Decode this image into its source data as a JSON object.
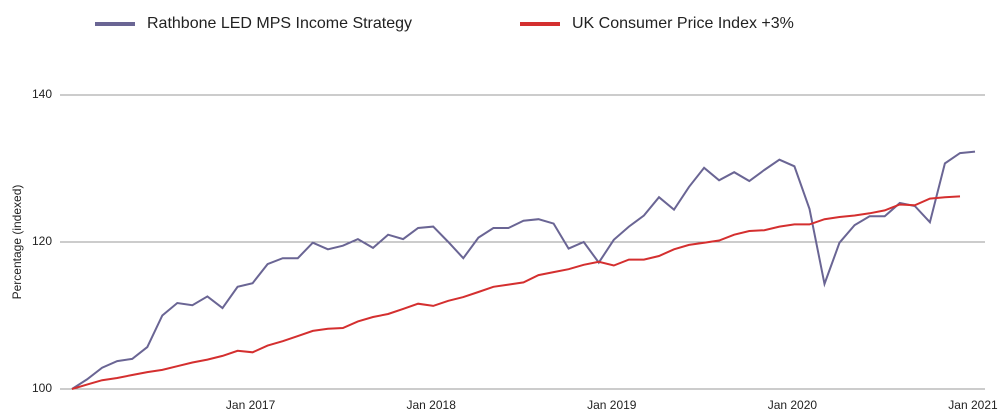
{
  "chart_data": {
    "type": "line",
    "categories": [
      null,
      null,
      null,
      null,
      null,
      null,
      null,
      null,
      null,
      null,
      null,
      null,
      "Jan 2017",
      null,
      null,
      null,
      null,
      null,
      null,
      null,
      null,
      null,
      null,
      null,
      "Jan 2018",
      null,
      null,
      null,
      null,
      null,
      null,
      null,
      null,
      null,
      null,
      null,
      "Jan 2019",
      null,
      null,
      null,
      null,
      null,
      null,
      null,
      null,
      null,
      null,
      null,
      "Jan 2020",
      null,
      null,
      null,
      null,
      null,
      null,
      null,
      null,
      null,
      null,
      null,
      "Jan 2021"
    ],
    "series": [
      {
        "name": "Rathbone LED MPS Income Strategy",
        "color": "#6a6594",
        "values": [
          100,
          101.3,
          102.9,
          103.8,
          104.1,
          105.7,
          110.0,
          111.7,
          111.4,
          112.6,
          111.0,
          113.9,
          114.4,
          117.0,
          117.8,
          117.8,
          119.9,
          119.0,
          119.5,
          120.4,
          119.2,
          121.0,
          120.4,
          121.9,
          122.1,
          120.0,
          117.8,
          120.6,
          121.9,
          121.9,
          122.9,
          123.1,
          122.5,
          119.1,
          120.0,
          117.2,
          120.3,
          122.1,
          123.6,
          126.1,
          124.4,
          127.5,
          130.1,
          128.4,
          129.5,
          128.3,
          129.8,
          131.2,
          130.3,
          124.5,
          114.3,
          119.9,
          122.3,
          123.5,
          123.5,
          125.3,
          124.9,
          122.7,
          130.7,
          132.1,
          132.3
        ]
      },
      {
        "name": "UK Consumer Price Index +3%",
        "color": "#d42f2f",
        "values": [
          100,
          100.6,
          101.2,
          101.5,
          101.9,
          102.3,
          102.6,
          103.1,
          103.6,
          104.0,
          104.5,
          105.2,
          105.0,
          105.9,
          106.5,
          107.2,
          107.9,
          108.2,
          108.3,
          109.2,
          109.8,
          110.2,
          110.9,
          111.6,
          111.3,
          112.0,
          112.5,
          113.2,
          113.9,
          114.2,
          114.5,
          115.5,
          115.9,
          116.3,
          116.9,
          117.3,
          116.8,
          117.6,
          117.6,
          118.1,
          119.0,
          119.6,
          119.9,
          120.2,
          121.0,
          121.5,
          121.6,
          122.1,
          122.4,
          122.4,
          123.1,
          123.4,
          123.6,
          123.9,
          124.3,
          125.1,
          125.0,
          125.9,
          126.1,
          126.2,
          null
        ]
      }
    ],
    "y_label": "Percentage (indexed)",
    "ylim": [
      100,
      140
    ],
    "yticks": [
      100,
      120,
      140
    ],
    "grid": true
  }
}
